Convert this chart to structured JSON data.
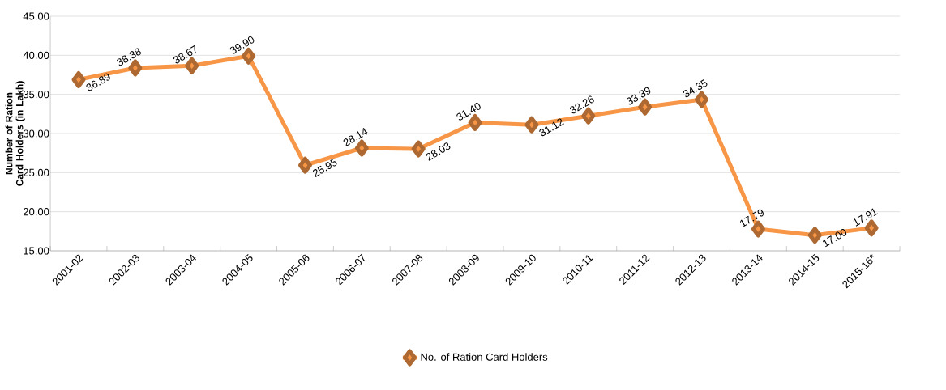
{
  "chart_data": {
    "type": "line",
    "ylabel": "Number of Ration Card Holders (in Lakh)",
    "categories": [
      "2001-02",
      "2002-03",
      "2003-04",
      "2004-05",
      "2005-06",
      "2006-07",
      "2007-08",
      "2008-09",
      "2009-10",
      "2010-11",
      "2011-12",
      "2012-13",
      "2013-14",
      "2014-15",
      "2015-16*"
    ],
    "series": [
      {
        "name": "No. of Ration Card Holders",
        "color": "#f79646",
        "values": [
          36.89,
          38.38,
          38.67,
          39.9,
          25.95,
          28.14,
          28.03,
          31.4,
          31.12,
          32.26,
          33.39,
          34.35,
          17.79,
          17.0,
          17.91
        ],
        "value_labels": [
          "36.89",
          "38.38",
          "38.67",
          "39.90",
          "25.95",
          "28.14",
          "28.03",
          "31.40",
          "31.12",
          "32.26",
          "33.39",
          "34.35",
          "17.79",
          "17.00",
          "17.91"
        ]
      }
    ],
    "ylim": [
      15,
      45
    ],
    "yticks": [
      {
        "value": 15,
        "label": "15.00"
      },
      {
        "value": 20,
        "label": "20.00"
      },
      {
        "value": 25,
        "label": "25.00"
      },
      {
        "value": 30,
        "label": "30.00"
      },
      {
        "value": 35,
        "label": "35.00"
      },
      {
        "value": 40,
        "label": "40.00"
      },
      {
        "value": 45,
        "label": "45.00"
      }
    ],
    "grid": "y",
    "legend": "bottom",
    "marker": "diamond",
    "line_style": "solid"
  }
}
